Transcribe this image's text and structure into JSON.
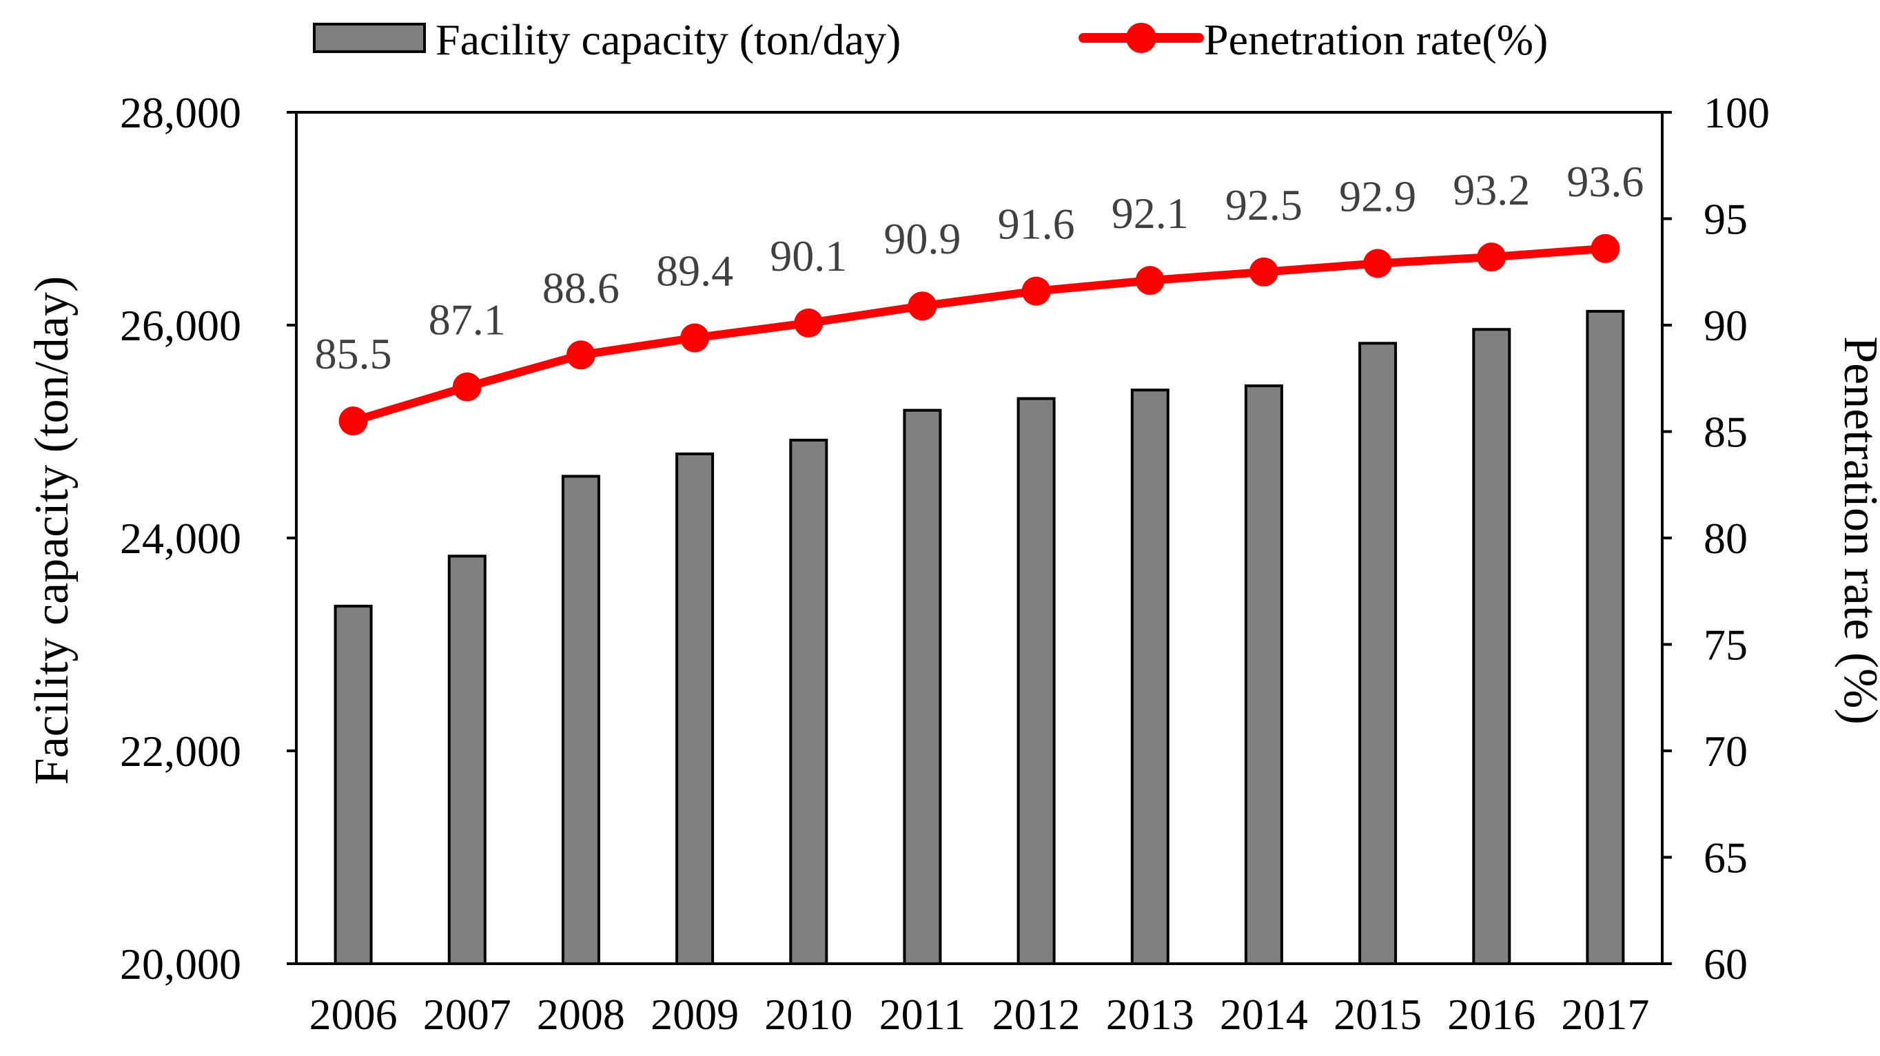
{
  "colors": {
    "bar_fill": "#808080",
    "bar_stroke": "#000000",
    "line": "#ff0000",
    "data_label": "#404040",
    "axis": "#000000"
  },
  "chart_data": {
    "type": "bar+line",
    "categories": [
      "2006",
      "2007",
      "2008",
      "2009",
      "2010",
      "2011",
      "2012",
      "2013",
      "2014",
      "2015",
      "2016",
      "2017"
    ],
    "series": [
      {
        "name": "Facility capacity (ton/day)",
        "type": "bar",
        "axis": "left",
        "values": [
          23360,
          23830,
          24580,
          24790,
          24920,
          25200,
          25310,
          25390,
          25430,
          25830,
          25960,
          26130
        ]
      },
      {
        "name": "Penetration rate(%)",
        "type": "line",
        "axis": "right",
        "values": [
          85.5,
          87.1,
          88.6,
          89.4,
          90.1,
          90.9,
          91.6,
          92.1,
          92.5,
          92.9,
          93.2,
          93.6
        ],
        "labels": [
          "85.5",
          "87.1",
          "88.6",
          "89.4",
          "90.1",
          "90.9",
          "91.6",
          "92.1",
          "92.5",
          "92.9",
          "93.2",
          "93.6"
        ]
      }
    ],
    "y_left": {
      "label": "Facility capacity (ton/day)",
      "range": [
        20000,
        28000
      ],
      "ticks": [
        20000,
        22000,
        24000,
        26000,
        28000
      ],
      "tick_labels": [
        "20,000",
        "22,000",
        "24,000",
        "26,000",
        "28,000"
      ]
    },
    "y_right": {
      "label": "Penetration rate (%)",
      "range": [
        60,
        100
      ],
      "ticks": [
        60,
        65,
        70,
        75,
        80,
        85,
        90,
        95,
        100
      ],
      "tick_labels": [
        "60",
        "65",
        "70",
        "75",
        "80",
        "85",
        "90",
        "95",
        "100"
      ]
    },
    "legend": {
      "position": "top",
      "entries": [
        "Facility capacity (ton/day)",
        "Penetration rate(%)"
      ]
    },
    "grid": false
  }
}
